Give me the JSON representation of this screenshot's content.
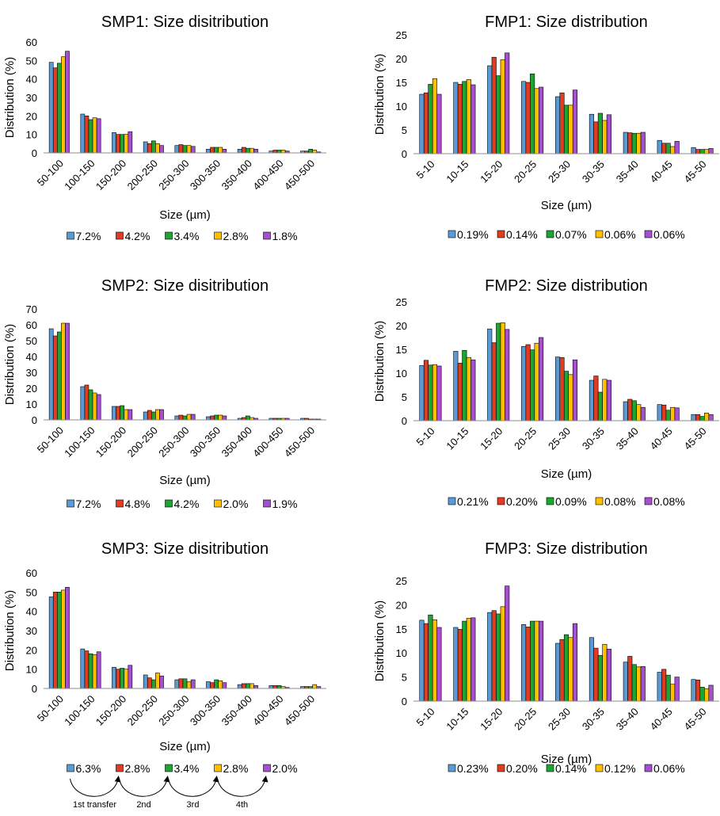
{
  "palette": [
    "#5b9bd5",
    "#e03c1f",
    "#1ea531",
    "#ffc000",
    "#a64fd1"
  ],
  "chart_data": [
    {
      "id": "smp1",
      "type": "bar",
      "title": "SMP1: Size disitribution",
      "xlabel": "Size (µm)",
      "ylabel": "Distribution (%)",
      "ylim": [
        0,
        60
      ],
      "yticks": [
        0,
        10,
        20,
        30,
        40,
        50,
        60
      ],
      "categories": [
        "50-100",
        "100-150",
        "150-200",
        "200-250",
        "250-300",
        "300-350",
        "350-400",
        "400-450",
        "450-500"
      ],
      "legend_position": "bottom",
      "series": [
        {
          "name": "7.2%",
          "values": [
            49,
            21,
            11,
            6,
            4,
            2,
            2,
            1,
            1
          ]
        },
        {
          "name": "4.2%",
          "values": [
            46,
            20,
            10,
            5,
            4.5,
            3,
            3,
            1.5,
            1
          ]
        },
        {
          "name": "3.4%",
          "values": [
            48.5,
            18,
            10,
            6.5,
            4,
            3,
            2.5,
            1.5,
            2
          ]
        },
        {
          "name": "2.8%",
          "values": [
            52,
            19,
            10,
            5,
            4,
            3,
            2.5,
            1.5,
            1.5
          ]
        },
        {
          "name": "1.8%",
          "values": [
            55,
            18.5,
            11.5,
            4,
            3.5,
            2,
            2,
            1,
            0.5
          ]
        }
      ]
    },
    {
      "id": "fmp1",
      "type": "bar",
      "title": "FMP1: Size distribution",
      "xlabel": "Size (µm)",
      "ylabel": "Distribution (%)",
      "ylim": [
        0,
        25
      ],
      "yticks": [
        0,
        5,
        10,
        15,
        20,
        25
      ],
      "categories": [
        "5-10",
        "10-15",
        "15-20",
        "20-25",
        "25-30",
        "30-35",
        "35-40",
        "40-45",
        "45-50"
      ],
      "legend_position": "bottom",
      "series": [
        {
          "name": "0.19%",
          "values": [
            12.5,
            15,
            18.5,
            15.2,
            12,
            8.3,
            4.5,
            2.8,
            1.3
          ]
        },
        {
          "name": "0.14%",
          "values": [
            12.8,
            14.6,
            20.3,
            15,
            12.8,
            6.7,
            4.4,
            2.2,
            0.9
          ]
        },
        {
          "name": "0.07%",
          "values": [
            14.6,
            15.2,
            16.4,
            16.8,
            10.2,
            8.5,
            4.3,
            2.2,
            0.9
          ]
        },
        {
          "name": "0.06%",
          "values": [
            15.8,
            15.6,
            19.8,
            13.7,
            10.2,
            7,
            4.3,
            1.5,
            0.9
          ]
        },
        {
          "name": "0.06%",
          "values": [
            12.5,
            14.5,
            21.2,
            14,
            13.4,
            8.2,
            4.5,
            2.6,
            1.1
          ]
        }
      ]
    },
    {
      "id": "smp2",
      "type": "bar",
      "title": "SMP2: Size disitribution",
      "xlabel": "Size (µm)",
      "ylabel": "Distribution (%)",
      "ylim": [
        0,
        70
      ],
      "yticks": [
        0,
        10,
        20,
        30,
        40,
        50,
        60,
        70
      ],
      "categories": [
        "50-100",
        "100-150",
        "150-200",
        "200-250",
        "250-300",
        "300-350",
        "350-400",
        "400-450",
        "450-500"
      ],
      "legend_position": "bottom",
      "series": [
        {
          "name": "7.2%",
          "values": [
            57.5,
            21,
            8.5,
            5,
            2.5,
            2,
            1,
            1,
            1
          ]
        },
        {
          "name": "4.8%",
          "values": [
            53,
            22,
            8.5,
            6,
            3,
            2.5,
            1.5,
            1,
            1
          ]
        },
        {
          "name": "4.2%",
          "values": [
            55.5,
            19,
            9,
            5,
            2.5,
            3,
            2.5,
            1,
            0.5
          ]
        },
        {
          "name": "2.0%",
          "values": [
            61,
            17,
            6.5,
            6.5,
            3.5,
            3,
            1.5,
            1,
            0.5
          ]
        },
        {
          "name": "1.9%",
          "values": [
            61,
            16,
            6.5,
            6.5,
            3.5,
            2.5,
            1,
            1,
            0.5
          ]
        }
      ]
    },
    {
      "id": "fmp2",
      "type": "bar",
      "title": "FMP2: Size distribution",
      "xlabel": "Size (µm)",
      "ylabel": "Distribution (%)",
      "ylim": [
        0,
        25
      ],
      "yticks": [
        0,
        5,
        10,
        15,
        20,
        25
      ],
      "categories": [
        "5-10",
        "10-15",
        "15-20",
        "20-25",
        "25-30",
        "30-35",
        "35-40",
        "40-45",
        "45-50"
      ],
      "legend_position": "bottom",
      "series": [
        {
          "name": "0.21%",
          "values": [
            11.6,
            14.6,
            19.3,
            15.6,
            13.4,
            8.5,
            4,
            3.4,
            1.3
          ]
        },
        {
          "name": "0.20%",
          "values": [
            12.7,
            12.1,
            16.4,
            16,
            13.3,
            9.4,
            4.5,
            3.3,
            1.3
          ]
        },
        {
          "name": "0.09%",
          "values": [
            11.7,
            14.8,
            20.5,
            14.9,
            10.4,
            6,
            4.2,
            2.2,
            0.9
          ]
        },
        {
          "name": "0.08%",
          "values": [
            11.8,
            13.3,
            20.6,
            16.3,
            9.7,
            8.7,
            3.4,
            2.8,
            1.6
          ]
        },
        {
          "name": "0.08%",
          "values": [
            11.5,
            12.8,
            19.2,
            17.5,
            12.8,
            8.5,
            2.8,
            2.7,
            1.3
          ]
        }
      ]
    },
    {
      "id": "smp3",
      "type": "bar",
      "title": "SMP3: Size disitribution",
      "xlabel": "Size (µm)",
      "ylabel": "Distribution (%)",
      "ylim": [
        0,
        60
      ],
      "yticks": [
        0,
        10,
        20,
        30,
        40,
        50,
        60
      ],
      "categories": [
        "50-100",
        "100-150",
        "150-200",
        "200-250",
        "250-300",
        "300-350",
        "350-400",
        "400-450",
        "450-500"
      ],
      "legend_position": "bottom",
      "series": [
        {
          "name": "6.3%",
          "values": [
            47.5,
            20.5,
            11,
            7,
            4.5,
            3.5,
            2,
            1.5,
            1
          ]
        },
        {
          "name": "2.8%",
          "values": [
            50,
            19.5,
            10,
            5.5,
            5,
            3,
            2.5,
            1.5,
            1
          ]
        },
        {
          "name": "3.4%",
          "values": [
            50,
            18,
            10.5,
            4.5,
            5,
            4.5,
            2.5,
            1.5,
            1
          ]
        },
        {
          "name": "2.8%",
          "values": [
            51,
            17.5,
            10,
            8,
            3.5,
            4,
            2.5,
            1,
            2
          ]
        },
        {
          "name": "2.0%",
          "values": [
            52.5,
            19,
            12,
            6.5,
            4.5,
            3,
            1.5,
            0.5,
            1
          ]
        }
      ],
      "annotations": [
        "1st transfer",
        "2nd",
        "3rd",
        "4th"
      ]
    },
    {
      "id": "fmp3",
      "type": "bar",
      "title": "FMP3: Size distribution",
      "xlabel": "Size (µm)",
      "ylabel": "Distribution (%)",
      "ylim": [
        0,
        25
      ],
      "yticks": [
        0,
        5,
        10,
        15,
        20,
        25
      ],
      "categories": [
        "5-10",
        "10-15",
        "15-20",
        "20-25",
        "25-30",
        "30-35",
        "35-40",
        "40-45",
        "45-50"
      ],
      "legend_position": "bottom",
      "series": [
        {
          "name": "0.23%",
          "values": [
            16.8,
            15.3,
            18.4,
            15.9,
            12,
            13.2,
            8.1,
            6,
            4.5
          ]
        },
        {
          "name": "0.20%",
          "values": [
            16.1,
            14.9,
            18.8,
            15.4,
            12.8,
            11,
            9.3,
            6.6,
            4.4
          ]
        },
        {
          "name": "0.14%",
          "values": [
            17.9,
            16.6,
            18.1,
            16.6,
            13.8,
            9.5,
            7.6,
            5.4,
            2.9
          ]
        },
        {
          "name": "0.12%",
          "values": [
            16.9,
            17.2,
            19.6,
            16.6,
            13.2,
            11.8,
            7.1,
            3.5,
            2.6
          ]
        },
        {
          "name": "0.06%",
          "values": [
            15.3,
            17.3,
            23.9,
            16.6,
            16.1,
            10.8,
            7.2,
            5,
            3.3
          ]
        }
      ]
    }
  ]
}
